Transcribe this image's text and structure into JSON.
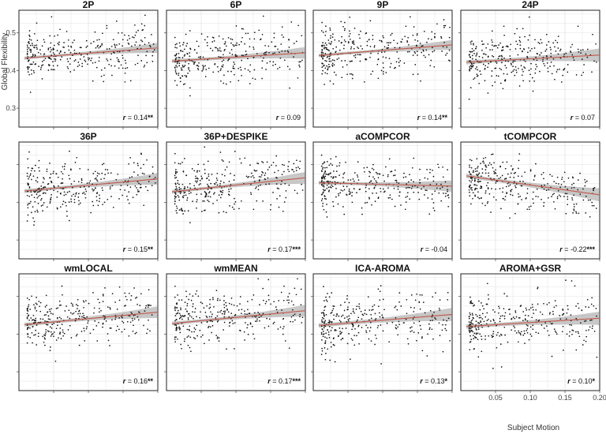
{
  "chart_data": {
    "type": "scatter",
    "title": "",
    "xlabel": "Subject Motion",
    "ylabel": "Global Flexibility",
    "xlim": [
      0.0,
      0.2
    ],
    "ylim": [
      0.25,
      0.56
    ],
    "x_ticks": [
      0.05,
      0.1,
      0.15,
      0.2
    ],
    "x_tick_labels": [
      "0.05",
      "0.10",
      "0.15",
      "0.20"
    ],
    "y_ticks": [
      0.3,
      0.4,
      0.5
    ],
    "y_tick_labels": [
      "0.3",
      "0.4",
      "0.5"
    ],
    "grid": true,
    "points_per_panel": 300,
    "panels": [
      {
        "title": "2P",
        "r_prefix": "r",
        "r_value": "= 0.14",
        "r_sig": "**",
        "fit_start": 0.433,
        "fit_end": 0.46,
        "ci_halfwidth": 0.006,
        "y_center": 0.442,
        "y_spread": 0.043
      },
      {
        "title": "6P",
        "r_prefix": "r",
        "r_value": "= 0.09",
        "r_sig": "",
        "fit_start": 0.425,
        "fit_end": 0.447,
        "ci_halfwidth": 0.007,
        "y_center": 0.432,
        "y_spread": 0.045
      },
      {
        "title": "9P",
        "r_prefix": "r",
        "r_value": "= 0.14",
        "r_sig": "**",
        "fit_start": 0.44,
        "fit_end": 0.468,
        "ci_halfwidth": 0.006,
        "y_center": 0.449,
        "y_spread": 0.042
      },
      {
        "title": "24P",
        "r_prefix": "r",
        "r_value": "= 0.07",
        "r_sig": "",
        "fit_start": 0.422,
        "fit_end": 0.441,
        "ci_halfwidth": 0.008,
        "y_center": 0.428,
        "y_spread": 0.044
      },
      {
        "title": "36P",
        "r_prefix": "r",
        "r_value": "= 0.15",
        "r_sig": "**",
        "fit_start": 0.43,
        "fit_end": 0.462,
        "ci_halfwidth": 0.007,
        "y_center": 0.44,
        "y_spread": 0.046
      },
      {
        "title": "36P+DESPIKE",
        "r_prefix": "r",
        "r_value": "= 0.17",
        "r_sig": "***",
        "fit_start": 0.428,
        "fit_end": 0.465,
        "ci_halfwidth": 0.007,
        "y_center": 0.44,
        "y_spread": 0.048
      },
      {
        "title": "aCOMPCOR",
        "r_prefix": "r",
        "r_value": "= -0.04",
        "r_sig": "",
        "fit_start": 0.452,
        "fit_end": 0.443,
        "ci_halfwidth": 0.007,
        "y_center": 0.449,
        "y_spread": 0.04
      },
      {
        "title": "tCOMPCOR",
        "r_prefix": "r",
        "r_value": "= -0.22",
        "r_sig": "***",
        "fit_start": 0.47,
        "fit_end": 0.42,
        "ci_halfwidth": 0.008,
        "y_center": 0.453,
        "y_spread": 0.042
      },
      {
        "title": "wmLOCAL",
        "r_prefix": "r",
        "r_value": "= 0.16",
        "r_sig": "**",
        "fit_start": 0.425,
        "fit_end": 0.458,
        "ci_halfwidth": 0.007,
        "y_center": 0.436,
        "y_spread": 0.045
      },
      {
        "title": "wmMEAN",
        "r_prefix": "r",
        "r_value": "= 0.17",
        "r_sig": "***",
        "fit_start": 0.428,
        "fit_end": 0.462,
        "ci_halfwidth": 0.007,
        "y_center": 0.439,
        "y_spread": 0.045
      },
      {
        "title": "ICA-AROMA",
        "r_prefix": "r",
        "r_value": "= 0.13",
        "r_sig": "*",
        "fit_start": 0.423,
        "fit_end": 0.452,
        "ci_halfwidth": 0.008,
        "y_center": 0.432,
        "y_spread": 0.048
      },
      {
        "title": "AROMA+GSR",
        "r_prefix": "r",
        "r_value": "= 0.10",
        "r_sig": "*",
        "fit_start": 0.42,
        "fit_end": 0.442,
        "ci_halfwidth": 0.008,
        "y_center": 0.427,
        "y_spread": 0.044
      }
    ],
    "colors": {
      "point": "#111111",
      "fit_line": "#c0584a",
      "ci_band": "#9a9a9a",
      "grid": "#e3e3e3",
      "frame": "#222222"
    }
  }
}
